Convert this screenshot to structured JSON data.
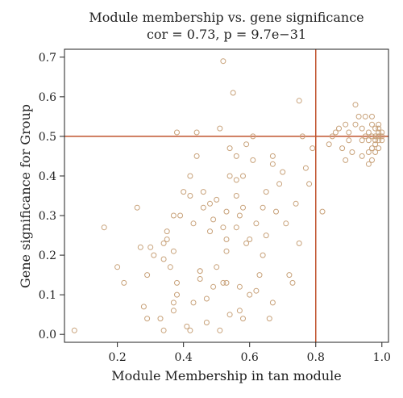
{
  "chart_data": {
    "type": "scatter",
    "title": "Module membership vs. gene significance",
    "subtitle": "cor = 0.73, p = 9.7e−31",
    "xlabel": "Module Membership in tan module",
    "ylabel": "Gene significance for Group",
    "xlim": [
      0.04,
      1.02
    ],
    "ylim": [
      -0.02,
      0.72
    ],
    "xticks": [
      0.2,
      0.4,
      0.6,
      0.8,
      1.0
    ],
    "xtick_labels": [
      "0.2",
      "0.4",
      "0.6",
      "0.8",
      "1.0"
    ],
    "yticks": [
      0.0,
      0.1,
      0.2,
      0.3,
      0.4,
      0.5,
      0.6,
      0.7
    ],
    "ytick_labels": [
      "0.0",
      "0.1",
      "0.2",
      "0.3",
      "0.4",
      "0.5",
      "0.6",
      "0.7"
    ],
    "grid": false,
    "reference_lines": {
      "x": 0.8,
      "y": 0.5
    },
    "colors": {
      "points": "#c8a27a",
      "reference": "#c0532d",
      "axis": "#222222"
    },
    "points": [
      [
        0.07,
        0.01
      ],
      [
        0.16,
        0.27
      ],
      [
        0.2,
        0.17
      ],
      [
        0.22,
        0.13
      ],
      [
        0.26,
        0.32
      ],
      [
        0.27,
        0.22
      ],
      [
        0.28,
        0.07
      ],
      [
        0.29,
        0.04
      ],
      [
        0.29,
        0.15
      ],
      [
        0.3,
        0.22
      ],
      [
        0.31,
        0.2
      ],
      [
        0.33,
        0.04
      ],
      [
        0.34,
        0.01
      ],
      [
        0.34,
        0.19
      ],
      [
        0.34,
        0.23
      ],
      [
        0.35,
        0.26
      ],
      [
        0.35,
        0.24
      ],
      [
        0.36,
        0.17
      ],
      [
        0.37,
        0.06
      ],
      [
        0.37,
        0.08
      ],
      [
        0.37,
        0.21
      ],
      [
        0.37,
        0.3
      ],
      [
        0.38,
        0.1
      ],
      [
        0.38,
        0.13
      ],
      [
        0.38,
        0.51
      ],
      [
        0.39,
        0.3
      ],
      [
        0.4,
        0.36
      ],
      [
        0.41,
        0.02
      ],
      [
        0.42,
        0.01
      ],
      [
        0.42,
        0.35
      ],
      [
        0.42,
        0.4
      ],
      [
        0.43,
        0.08
      ],
      [
        0.43,
        0.28
      ],
      [
        0.44,
        0.51
      ],
      [
        0.44,
        0.45
      ],
      [
        0.45,
        0.14
      ],
      [
        0.45,
        0.16
      ],
      [
        0.45,
        0.16
      ],
      [
        0.46,
        0.32
      ],
      [
        0.46,
        0.36
      ],
      [
        0.47,
        0.09
      ],
      [
        0.47,
        0.03
      ],
      [
        0.48,
        0.26
      ],
      [
        0.48,
        0.33
      ],
      [
        0.49,
        0.12
      ],
      [
        0.49,
        0.29
      ],
      [
        0.5,
        0.17
      ],
      [
        0.5,
        0.34
      ],
      [
        0.51,
        0.01
      ],
      [
        0.51,
        0.52
      ],
      [
        0.52,
        0.13
      ],
      [
        0.52,
        0.27
      ],
      [
        0.52,
        0.69
      ],
      [
        0.53,
        0.21
      ],
      [
        0.53,
        0.24
      ],
      [
        0.53,
        0.13
      ],
      [
        0.53,
        0.31
      ],
      [
        0.54,
        0.05
      ],
      [
        0.54,
        0.4
      ],
      [
        0.54,
        0.47
      ],
      [
        0.55,
        0.61
      ],
      [
        0.56,
        0.27
      ],
      [
        0.56,
        0.35
      ],
      [
        0.56,
        0.39
      ],
      [
        0.56,
        0.45
      ],
      [
        0.57,
        0.3
      ],
      [
        0.57,
        0.12
      ],
      [
        0.57,
        0.06
      ],
      [
        0.58,
        0.32
      ],
      [
        0.58,
        0.4
      ],
      [
        0.58,
        0.04
      ],
      [
        0.59,
        0.23
      ],
      [
        0.59,
        0.48
      ],
      [
        0.6,
        0.1
      ],
      [
        0.6,
        0.24
      ],
      [
        0.61,
        0.5
      ],
      [
        0.61,
        0.44
      ],
      [
        0.62,
        0.11
      ],
      [
        0.62,
        0.28
      ],
      [
        0.63,
        0.15
      ],
      [
        0.64,
        0.2
      ],
      [
        0.64,
        0.32
      ],
      [
        0.65,
        0.36
      ],
      [
        0.65,
        0.25
      ],
      [
        0.66,
        0.04
      ],
      [
        0.67,
        0.08
      ],
      [
        0.67,
        0.45
      ],
      [
        0.67,
        0.43
      ],
      [
        0.68,
        0.31
      ],
      [
        0.69,
        0.38
      ],
      [
        0.7,
        0.41
      ],
      [
        0.71,
        0.28
      ],
      [
        0.72,
        0.15
      ],
      [
        0.73,
        0.13
      ],
      [
        0.74,
        0.33
      ],
      [
        0.75,
        0.23
      ],
      [
        0.75,
        0.59
      ],
      [
        0.76,
        0.5
      ],
      [
        0.77,
        0.42
      ],
      [
        0.78,
        0.38
      ],
      [
        0.79,
        0.47
      ],
      [
        0.82,
        0.31
      ],
      [
        0.84,
        0.48
      ],
      [
        0.85,
        0.5
      ],
      [
        0.86,
        0.51
      ],
      [
        0.87,
        0.52
      ],
      [
        0.88,
        0.47
      ],
      [
        0.89,
        0.53
      ],
      [
        0.89,
        0.44
      ],
      [
        0.9,
        0.49
      ],
      [
        0.9,
        0.51
      ],
      [
        0.91,
        0.46
      ],
      [
        0.92,
        0.53
      ],
      [
        0.92,
        0.58
      ],
      [
        0.93,
        0.55
      ],
      [
        0.94,
        0.49
      ],
      [
        0.94,
        0.45
      ],
      [
        0.94,
        0.52
      ],
      [
        0.95,
        0.5
      ],
      [
        0.95,
        0.55
      ],
      [
        0.96,
        0.43
      ],
      [
        0.96,
        0.46
      ],
      [
        0.96,
        0.49
      ],
      [
        0.96,
        0.51
      ],
      [
        0.97,
        0.47
      ],
      [
        0.97,
        0.44
      ],
      [
        0.97,
        0.53
      ],
      [
        0.97,
        0.55
      ],
      [
        0.97,
        0.5
      ],
      [
        0.98,
        0.48
      ],
      [
        0.98,
        0.52
      ],
      [
        0.98,
        0.5
      ],
      [
        0.98,
        0.49
      ],
      [
        0.98,
        0.46
      ],
      [
        0.99,
        0.51
      ],
      [
        0.99,
        0.49
      ],
      [
        0.99,
        0.5
      ],
      [
        0.99,
        0.53
      ],
      [
        0.99,
        0.47
      ],
      [
        0.99,
        0.52
      ],
      [
        1.0,
        0.5
      ],
      [
        1.0,
        0.49
      ],
      [
        1.0,
        0.51
      ]
    ]
  }
}
